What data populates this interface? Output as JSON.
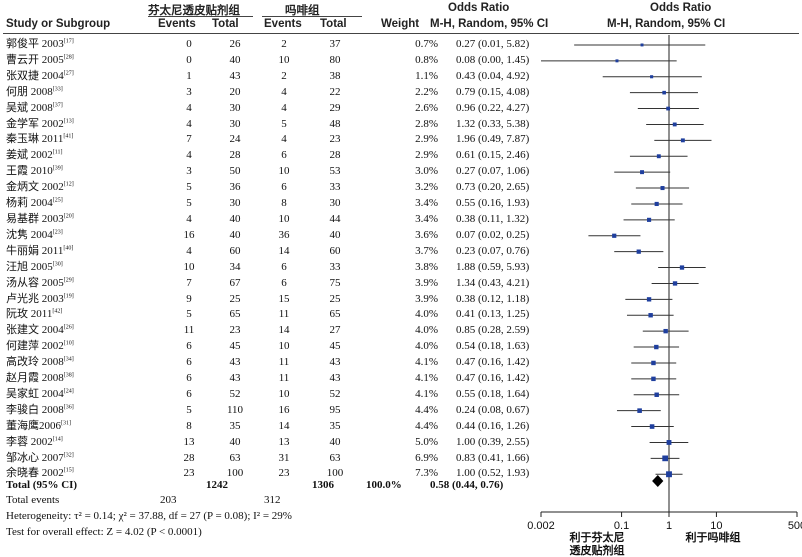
{
  "headers": {
    "group1": "芬太尼透皮贴剂组",
    "group2": "吗啡组",
    "study": "Study or Subgroup",
    "events1": "Events",
    "total1": "Total",
    "events2": "Events",
    "total2": "Total",
    "weight": "Weight",
    "or_title": "Odds Ratio",
    "or_method": "M-H, Random, 95% CI",
    "plot_title": "Odds Ratio",
    "plot_method": "M-H, Random, 95% CI"
  },
  "summary": {
    "total_label": "Total (95% CI)",
    "total1": "1242",
    "total2": "1306",
    "weight": "100.0%",
    "or_text": "0.58 (0.44, 0.76)",
    "events_label": "Total events",
    "events1": "203",
    "events2": "312",
    "heterogeneity": "Heterogeneity: τ² = 0.14; χ² = 37.88, df = 27 (P = 0.08); I² = 29%",
    "overall": "Test for overall effect: Z = 4.02 (P < 0.0001)"
  },
  "axis": {
    "favours_left_line1": "利于芬太尼",
    "favours_left_line2": "透皮贴剂组",
    "favours_right": "利于吗啡组"
  },
  "chart_data": {
    "type": "forest",
    "scale": "log",
    "xlim": [
      0.002,
      500
    ],
    "ticks": [
      {
        "value": 0.002,
        "label": "0.002"
      },
      {
        "value": 0.1,
        "label": "0.1"
      },
      {
        "value": 1,
        "label": "1"
      },
      {
        "value": 10,
        "label": "10"
      },
      {
        "value": 500,
        "label": "500"
      }
    ],
    "reference_line": 1,
    "pooled": {
      "or": 0.58,
      "lo": 0.44,
      "hi": 0.76
    },
    "studies": [
      {
        "name": "郭俊平 2003",
        "ref": "[17]",
        "e1": "0",
        "t1": "26",
        "e2": "2",
        "t2": "37",
        "weight": "0.7%",
        "or_text": "0.27 (0.01, 5.82)",
        "or": 0.27,
        "lo": 0.01,
        "hi": 5.82
      },
      {
        "name": "曹云开 2005",
        "ref": "[28]",
        "e1": "0",
        "t1": "40",
        "e2": "10",
        "t2": "80",
        "weight": "0.8%",
        "or_text": "0.08 (0.00, 1.45)",
        "or": 0.08,
        "lo": 0.002,
        "hi": 1.45
      },
      {
        "name": "张双捷 2004",
        "ref": "[27]",
        "e1": "1",
        "t1": "43",
        "e2": "2",
        "t2": "38",
        "weight": "1.1%",
        "or_text": "0.43 (0.04, 4.92)",
        "or": 0.43,
        "lo": 0.04,
        "hi": 4.92
      },
      {
        "name": "何朋 2008",
        "ref": "[33]",
        "e1": "3",
        "t1": "20",
        "e2": "4",
        "t2": "22",
        "weight": "2.2%",
        "or_text": "0.79 (0.15, 4.08)",
        "or": 0.79,
        "lo": 0.15,
        "hi": 4.08
      },
      {
        "name": "吴斌 2008",
        "ref": "[37]",
        "e1": "4",
        "t1": "30",
        "e2": "4",
        "t2": "29",
        "weight": "2.6%",
        "or_text": "0.96 (0.22, 4.27)",
        "or": 0.96,
        "lo": 0.22,
        "hi": 4.27
      },
      {
        "name": "金学军 2002",
        "ref": "[13]",
        "e1": "4",
        "t1": "30",
        "e2": "5",
        "t2": "48",
        "weight": "2.8%",
        "or_text": "1.32 (0.33, 5.38)",
        "or": 1.32,
        "lo": 0.33,
        "hi": 5.38
      },
      {
        "name": "秦玉琳 2011",
        "ref": "[41]",
        "e1": "7",
        "t1": "24",
        "e2": "4",
        "t2": "23",
        "weight": "2.9%",
        "or_text": "1.96 (0.49, 7.87)",
        "or": 1.96,
        "lo": 0.49,
        "hi": 7.87
      },
      {
        "name": "姜斌 2002",
        "ref": "[11]",
        "e1": "4",
        "t1": "28",
        "e2": "6",
        "t2": "28",
        "weight": "2.9%",
        "or_text": "0.61 (0.15, 2.46)",
        "or": 0.61,
        "lo": 0.15,
        "hi": 2.46
      },
      {
        "name": "王霞 2010",
        "ref": "[39]",
        "e1": "3",
        "t1": "50",
        "e2": "10",
        "t2": "53",
        "weight": "3.0%",
        "or_text": "0.27 (0.07, 1.06)",
        "or": 0.27,
        "lo": 0.07,
        "hi": 1.06
      },
      {
        "name": "金炳文 2002",
        "ref": "[12]",
        "e1": "5",
        "t1": "36",
        "e2": "6",
        "t2": "33",
        "weight": "3.2%",
        "or_text": "0.73 (0.20, 2.65)",
        "or": 0.73,
        "lo": 0.2,
        "hi": 2.65
      },
      {
        "name": "杨莉 2004",
        "ref": "[25]",
        "e1": "5",
        "t1": "30",
        "e2": "8",
        "t2": "30",
        "weight": "3.4%",
        "or_text": "0.55 (0.16, 1.93)",
        "or": 0.55,
        "lo": 0.16,
        "hi": 1.93
      },
      {
        "name": "易基群 2003",
        "ref": "[20]",
        "e1": "4",
        "t1": "40",
        "e2": "10",
        "t2": "44",
        "weight": "3.4%",
        "or_text": "0.38 (0.11, 1.32)",
        "or": 0.38,
        "lo": 0.11,
        "hi": 1.32
      },
      {
        "name": "沈隽 2004",
        "ref": "[23]",
        "e1": "16",
        "t1": "40",
        "e2": "36",
        "t2": "40",
        "weight": "3.6%",
        "or_text": "0.07 (0.02, 0.25)",
        "or": 0.07,
        "lo": 0.02,
        "hi": 0.25
      },
      {
        "name": "牛丽娟 2011",
        "ref": "[40]",
        "e1": "4",
        "t1": "60",
        "e2": "14",
        "t2": "60",
        "weight": "3.7%",
        "or_text": "0.23 (0.07, 0.76)",
        "or": 0.23,
        "lo": 0.07,
        "hi": 0.76
      },
      {
        "name": "汪旭 2005",
        "ref": "[30]",
        "e1": "10",
        "t1": "34",
        "e2": "6",
        "t2": "33",
        "weight": "3.8%",
        "or_text": "1.88 (0.59, 5.93)",
        "or": 1.88,
        "lo": 0.59,
        "hi": 5.93
      },
      {
        "name": "汤从容 2005",
        "ref": "[29]",
        "e1": "7",
        "t1": "67",
        "e2": "6",
        "t2": "75",
        "weight": "3.9%",
        "or_text": "1.34 (0.43, 4.21)",
        "or": 1.34,
        "lo": 0.43,
        "hi": 4.21
      },
      {
        "name": "卢光兆 2003",
        "ref": "[19]",
        "e1": "9",
        "t1": "25",
        "e2": "15",
        "t2": "25",
        "weight": "3.9%",
        "or_text": "0.38 (0.12, 1.18)",
        "or": 0.38,
        "lo": 0.12,
        "hi": 1.18
      },
      {
        "name": "阮玫 2011",
        "ref": "[42]",
        "e1": "5",
        "t1": "65",
        "e2": "11",
        "t2": "65",
        "weight": "4.0%",
        "or_text": "0.41 (0.13, 1.25)",
        "or": 0.41,
        "lo": 0.13,
        "hi": 1.25
      },
      {
        "name": "张建文 2004",
        "ref": "[26]",
        "e1": "11",
        "t1": "23",
        "e2": "14",
        "t2": "27",
        "weight": "4.0%",
        "or_text": "0.85 (0.28, 2.59)",
        "or": 0.85,
        "lo": 0.28,
        "hi": 2.59
      },
      {
        "name": "何建萍 2002",
        "ref": "[10]",
        "e1": "6",
        "t1": "45",
        "e2": "10",
        "t2": "45",
        "weight": "4.0%",
        "or_text": "0.54 (0.18, 1.63)",
        "or": 0.54,
        "lo": 0.18,
        "hi": 1.63
      },
      {
        "name": "高改玲 2008",
        "ref": "[34]",
        "e1": "6",
        "t1": "43",
        "e2": "11",
        "t2": "43",
        "weight": "4.1%",
        "or_text": "0.47 (0.16, 1.42)",
        "or": 0.47,
        "lo": 0.16,
        "hi": 1.42
      },
      {
        "name": "赵月霞 2008",
        "ref": "[38]",
        "e1": "6",
        "t1": "43",
        "e2": "11",
        "t2": "43",
        "weight": "4.1%",
        "or_text": "0.47 (0.16, 1.42)",
        "or": 0.47,
        "lo": 0.16,
        "hi": 1.42
      },
      {
        "name": "吴家虹 2004",
        "ref": "[24]",
        "e1": "6",
        "t1": "52",
        "e2": "10",
        "t2": "52",
        "weight": "4.1%",
        "or_text": "0.55 (0.18, 1.64)",
        "or": 0.55,
        "lo": 0.18,
        "hi": 1.64
      },
      {
        "name": "李骏白 2008",
        "ref": "[36]",
        "e1": "5",
        "t1": "110",
        "e2": "16",
        "t2": "95",
        "weight": "4.4%",
        "or_text": "0.24 (0.08, 0.67)",
        "or": 0.24,
        "lo": 0.08,
        "hi": 0.67
      },
      {
        "name": "董海鹰2006",
        "ref": "[31]",
        "e1": "8",
        "t1": "35",
        "e2": "14",
        "t2": "35",
        "weight": "4.4%",
        "or_text": "0.44 (0.16, 1.26)",
        "or": 0.44,
        "lo": 0.16,
        "hi": 1.26
      },
      {
        "name": "李蓉 2002",
        "ref": "[14]",
        "e1": "13",
        "t1": "40",
        "e2": "13",
        "t2": "40",
        "weight": "5.0%",
        "or_text": "1.00 (0.39, 2.55)",
        "or": 1.0,
        "lo": 0.39,
        "hi": 2.55
      },
      {
        "name": "邹冰心 2007",
        "ref": "[32]",
        "e1": "28",
        "t1": "63",
        "e2": "31",
        "t2": "63",
        "weight": "6.9%",
        "or_text": "0.83 (0.41, 1.66)",
        "or": 0.83,
        "lo": 0.41,
        "hi": 1.66
      },
      {
        "name": "余晓春 2002",
        "ref": "[15]",
        "e1": "23",
        "t1": "100",
        "e2": "23",
        "t2": "100",
        "weight": "7.3%",
        "or_text": "1.00 (0.52, 1.93)",
        "or": 1.0,
        "lo": 0.52,
        "hi": 1.93
      }
    ]
  }
}
